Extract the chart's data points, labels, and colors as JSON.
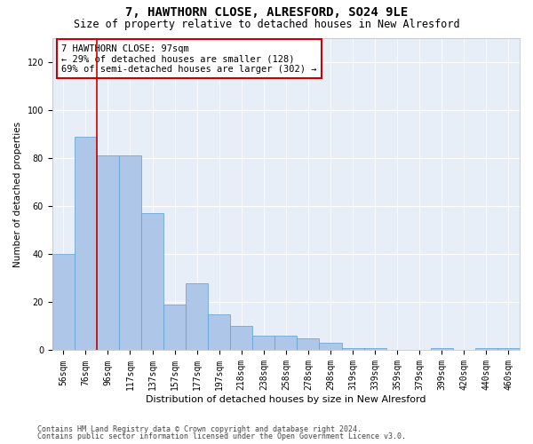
{
  "title1": "7, HAWTHORN CLOSE, ALRESFORD, SO24 9LE",
  "title2": "Size of property relative to detached houses in New Alresford",
  "xlabel": "Distribution of detached houses by size in New Alresford",
  "ylabel": "Number of detached properties",
  "categories": [
    "56sqm",
    "76sqm",
    "96sqm",
    "117sqm",
    "137sqm",
    "157sqm",
    "177sqm",
    "197sqm",
    "218sqm",
    "238sqm",
    "258sqm",
    "278sqm",
    "298sqm",
    "319sqm",
    "339sqm",
    "359sqm",
    "379sqm",
    "399sqm",
    "420sqm",
    "440sqm",
    "460sqm"
  ],
  "values": [
    40,
    89,
    81,
    81,
    57,
    19,
    28,
    15,
    10,
    6,
    6,
    5,
    3,
    1,
    1,
    0,
    0,
    1,
    0,
    1,
    1
  ],
  "bar_color": "#aec6e8",
  "bar_edge_color": "#5a9fd4",
  "vline_x": 1.5,
  "vline_color": "#cc0000",
  "annotation_text": "7 HAWTHORN CLOSE: 97sqm\n← 29% of detached houses are smaller (128)\n69% of semi-detached houses are larger (302) →",
  "annotation_box_color": "white",
  "annotation_box_edge": "#cc0000",
  "ylim": [
    0,
    130
  ],
  "yticks": [
    0,
    20,
    40,
    60,
    80,
    100,
    120
  ],
  "footer1": "Contains HM Land Registry data © Crown copyright and database right 2024.",
  "footer2": "Contains public sector information licensed under the Open Government Licence v3.0.",
  "background_color": "#e8eef8",
  "title1_fontsize": 10,
  "title2_fontsize": 8.5,
  "xlabel_fontsize": 8,
  "ylabel_fontsize": 7.5,
  "tick_fontsize": 7,
  "annotation_fontsize": 7.5,
  "footer_fontsize": 6
}
